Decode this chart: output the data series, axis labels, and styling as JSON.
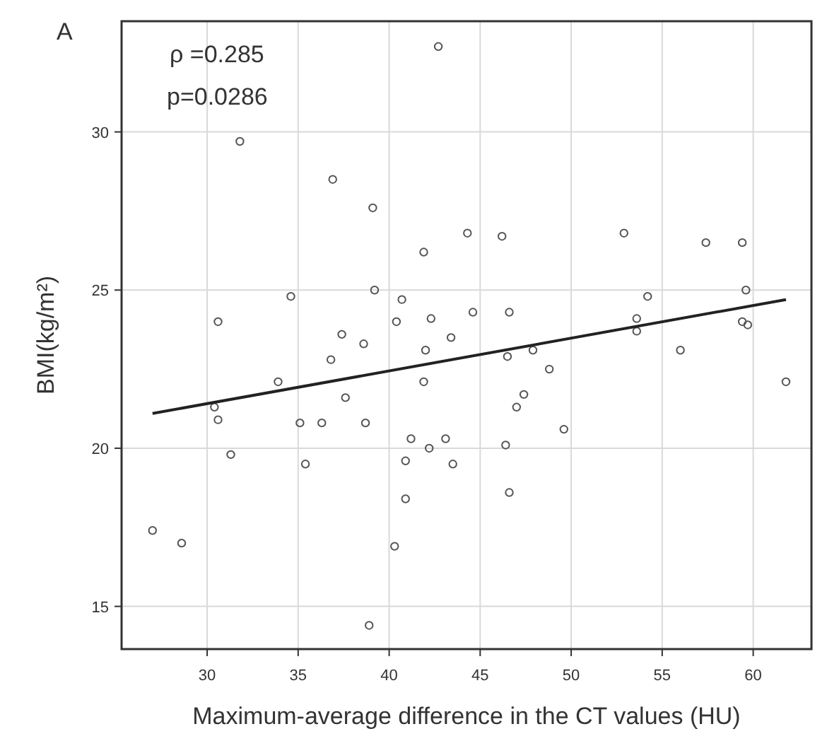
{
  "chart_data": {
    "type": "scatter",
    "xlabel": "Maximum-average difference in the CT values (HU)",
    "ylabel": "BMI(kg/m²)",
    "annotations": [
      "A",
      "ρ =0.285",
      "p=0.0286"
    ],
    "xlim": [
      25.3,
      63.2
    ],
    "ylim": [
      13.65,
      33.5
    ],
    "xticks": [
      30,
      35,
      40,
      45,
      50,
      55,
      60
    ],
    "yticks": [
      15,
      20,
      25,
      30
    ],
    "grid": true,
    "marker": "circle",
    "series": [
      {
        "color": "#555555",
        "x": [
          27,
          28.6,
          30.4,
          30.6,
          30.6,
          31.3,
          31.8,
          33.9,
          34.6,
          35.1,
          35.4,
          36.3,
          36.8,
          36.9,
          37.4,
          37.6,
          38.6,
          38.7,
          38.9,
          39.1,
          39.2,
          40.3,
          40.4,
          40.7,
          40.9,
          40.9,
          41.2,
          41.9,
          41.9,
          42,
          42.2,
          42.3,
          42.7,
          43.1,
          43.4,
          43.5,
          44.3,
          44.6,
          46.2,
          46.5,
          46.4,
          46.6,
          46.6,
          47,
          47.4,
          47.9,
          48.8,
          49.6,
          52.9,
          53.6,
          53.6,
          54.2,
          56,
          57.4,
          59.4,
          59.6,
          59.4,
          59.7,
          61.8
        ],
        "values": [
          17.4,
          17.0,
          21.3,
          20.9,
          24.0,
          19.8,
          29.7,
          22.1,
          24.8,
          20.8,
          19.5,
          20.8,
          22.8,
          28.5,
          23.6,
          21.6,
          23.3,
          20.8,
          14.4,
          27.6,
          25.0,
          16.9,
          24.0,
          24.7,
          19.6,
          18.4,
          20.3,
          26.2,
          22.1,
          23.1,
          20.0,
          24.1,
          32.7,
          20.3,
          23.5,
          19.5,
          26.8,
          24.3,
          26.7,
          22.9,
          20.1,
          24.3,
          18.6,
          21.3,
          21.7,
          23.1,
          22.5,
          20.6,
          26.8,
          23.7,
          24.1,
          24.8,
          23.1,
          26.5,
          26.5,
          25.0,
          24.0,
          23.9,
          22.1
        ]
      },
      {
        "type": "line",
        "color": "#222222",
        "marker": "none",
        "x": [
          27,
          61.8
        ],
        "values": [
          21.1,
          24.7
        ]
      }
    ]
  }
}
